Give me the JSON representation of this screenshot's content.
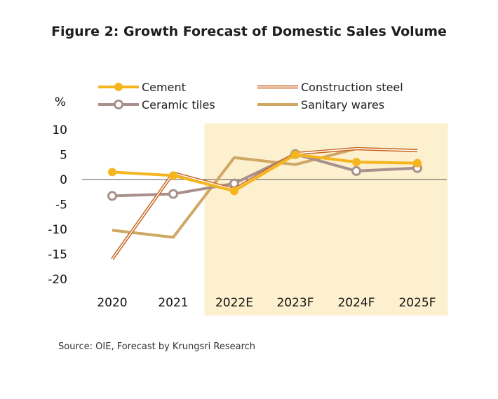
{
  "chart_data": {
    "type": "line",
    "title": "Figure 2: Growth Forecast of Domestic Sales Volume",
    "ylabel": "%",
    "xlabel": "",
    "categories": [
      "2020",
      "2021",
      "2022E",
      "2023F",
      "2024F",
      "2025F"
    ],
    "y_ticks": [
      "10",
      "5",
      "0",
      "-5",
      "-10",
      "-15",
      "-20"
    ],
    "ylim": [
      -20,
      10
    ],
    "forecast_shading": {
      "from": "2022E",
      "to": "2025F",
      "color": "#fdf0cf"
    },
    "grid": false,
    "legend_placement": "top",
    "series": [
      {
        "name": "Cement",
        "color": "#f5b51e",
        "style": "solid-marker",
        "values": [
          1.5,
          0.8,
          -2.3,
          5.0,
          3.5,
          3.3
        ]
      },
      {
        "name": "Construction steel",
        "color": "#c8641e",
        "style": "double-line",
        "values": [
          -16.0,
          1.3,
          -2.0,
          5.2,
          6.2,
          5.8
        ]
      },
      {
        "name": "Ceramic tiles",
        "color": "#a8908c",
        "style": "ring-marker",
        "values": [
          -3.3,
          -2.9,
          -0.8,
          5.1,
          1.7,
          2.3
        ]
      },
      {
        "name": "Sanitary wares",
        "color": "#cfa865",
        "style": "solid",
        "values": [
          -10.2,
          -11.6,
          4.4,
          3.0,
          6.2,
          5.9
        ]
      }
    ]
  },
  "source_note": "Source: OIE, Forecast by Krungsri Research"
}
